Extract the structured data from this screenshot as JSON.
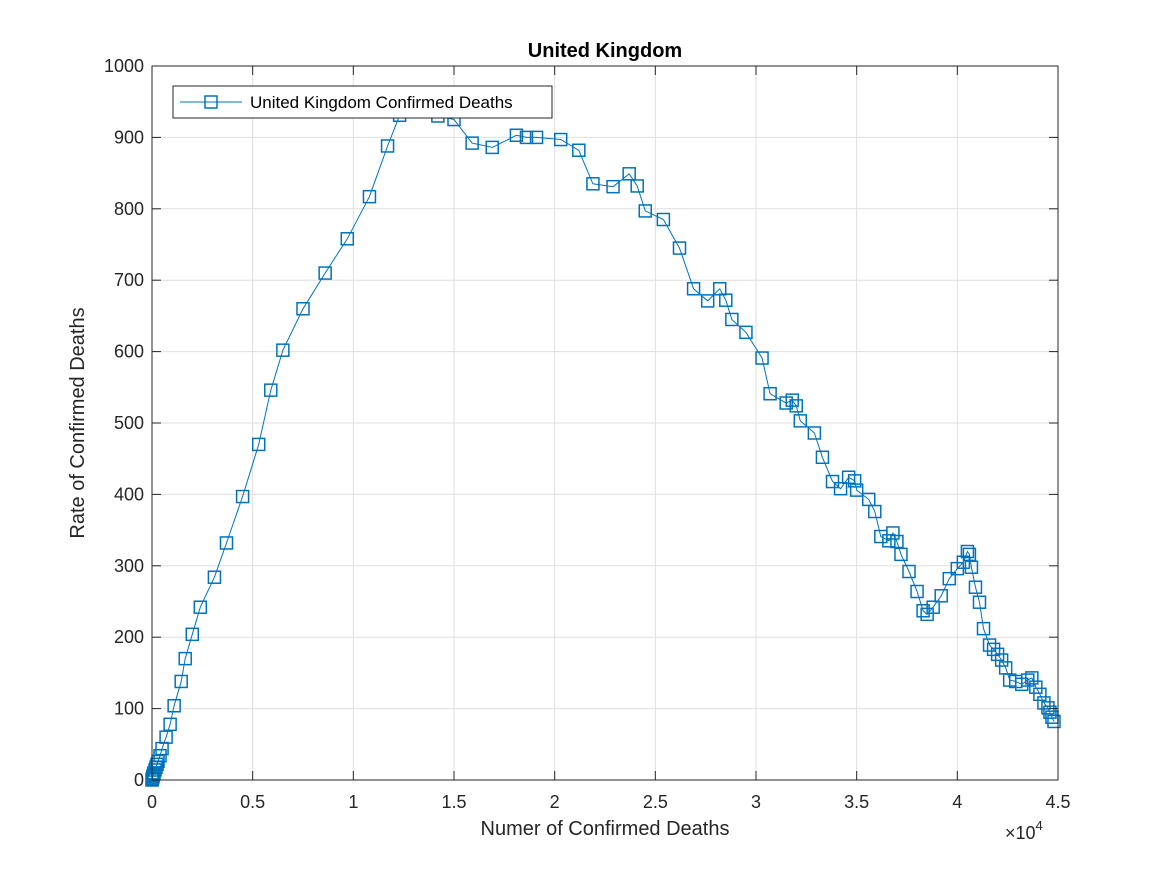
{
  "chart_data": {
    "type": "line",
    "title": "United Kingdom",
    "xlabel": "Numer of Confirmed Deaths",
    "ylabel": "Rate of Confirmed Deaths",
    "xlim": [
      0,
      45000
    ],
    "ylim": [
      0,
      1000
    ],
    "x_ticks": [
      0,
      0.5,
      1,
      1.5,
      2,
      2.5,
      3,
      3.5,
      4,
      4.5
    ],
    "x_tick_labels": [
      "0",
      "0.5",
      "1",
      "1.5",
      "2",
      "2.5",
      "3",
      "3.5",
      "4",
      "4.5"
    ],
    "x_multiplier_base": "×10",
    "x_multiplier_exp": "4",
    "y_ticks": [
      0,
      100,
      200,
      300,
      400,
      500,
      600,
      700,
      800,
      900,
      1000
    ],
    "y_tick_labels": [
      "0",
      "100",
      "200",
      "300",
      "400",
      "500",
      "600",
      "700",
      "800",
      "900",
      "1000"
    ],
    "grid": true,
    "legend_position": "top-left",
    "series": [
      {
        "name": "United Kingdom Confirmed Deaths",
        "color": "#0072BD",
        "marker": "square",
        "x": [
          0,
          10,
          20,
          40,
          60,
          80,
          100,
          150,
          200,
          250,
          300,
          400,
          500,
          700,
          900,
          1100,
          1450,
          1650,
          2000,
          2400,
          3100,
          3700,
          4500,
          5300,
          5900,
          6500,
          7500,
          8600,
          9700,
          10800,
          11700,
          12300,
          12900,
          13600,
          14200,
          15000,
          15900,
          16900,
          18100,
          18600,
          19100,
          20300,
          21200,
          21900,
          22900,
          23700,
          24100,
          24500,
          25400,
          26200,
          26900,
          27600,
          28200,
          28500,
          28800,
          29500,
          30300,
          30700,
          31500,
          31800,
          32000,
          32200,
          32900,
          33300,
          33800,
          34200,
          34600,
          34900,
          35000,
          35600,
          35900,
          36200,
          36600,
          36800,
          37000,
          37200,
          37600,
          38000,
          38300,
          38500,
          38800,
          39200,
          39600,
          40000,
          40300,
          40500,
          40600,
          40700,
          40900,
          41100,
          41300,
          41600,
          41800,
          42000,
          42200,
          42400,
          42600,
          42900,
          43200,
          43500,
          43700,
          43900,
          44100,
          44300,
          44500,
          44600,
          44700,
          44800
        ],
        "y": [
          0,
          1,
          2,
          4,
          6,
          8,
          10,
          14,
          18,
          22,
          26,
          34,
          44,
          60,
          78,
          104,
          138,
          170,
          204,
          242,
          284,
          332,
          397,
          470,
          546,
          602,
          660,
          710,
          758,
          817,
          888,
          931,
          937,
          936,
          930,
          925,
          892,
          886,
          903,
          900,
          900,
          897,
          882,
          835,
          831,
          849,
          832,
          797,
          785,
          745,
          688,
          671,
          688,
          672,
          645,
          627,
          591,
          541,
          528,
          532,
          524,
          503,
          486,
          452,
          418,
          408,
          424,
          419,
          406,
          393,
          376,
          341,
          335,
          346,
          334,
          316,
          292,
          264,
          237,
          232,
          242,
          258,
          282,
          296,
          305,
          320,
          316,
          298,
          270,
          249,
          212,
          189,
          183,
          176,
          168,
          157,
          140,
          138,
          134,
          140,
          143,
          130,
          120,
          108,
          101,
          95,
          88,
          82
        ]
      }
    ]
  }
}
